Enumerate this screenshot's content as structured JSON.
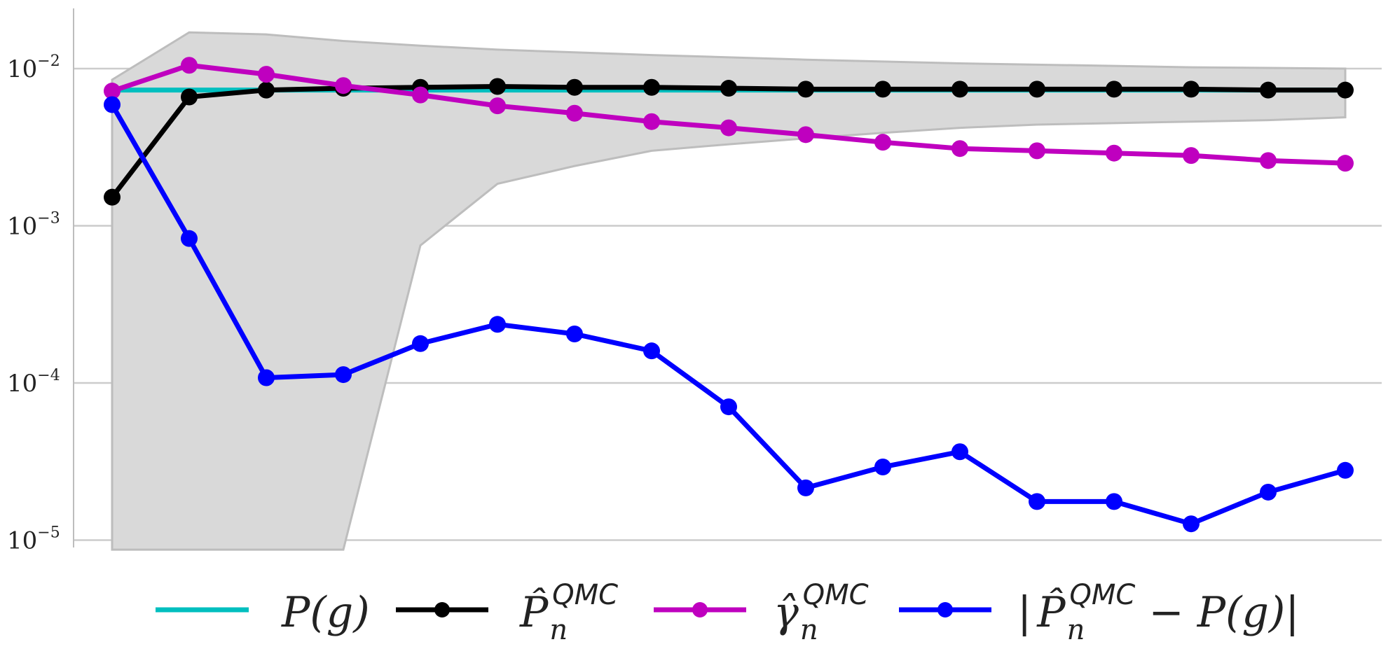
{
  "chart_data": {
    "type": "line",
    "title": "",
    "xlabel": "",
    "ylabel": "",
    "yscale": "log",
    "ylim": [
      8.5e-06,
      0.025
    ],
    "x": [
      1,
      2,
      3,
      4,
      5,
      6,
      7,
      8,
      9,
      10,
      11,
      12,
      13,
      14,
      15,
      16,
      17
    ],
    "y_ticks": [
      {
        "value": 0.01,
        "base": "10",
        "exp": "−2"
      },
      {
        "value": 0.001,
        "base": "10",
        "exp": "−3"
      },
      {
        "value": 0.0001,
        "base": "10",
        "exp": "−4"
      },
      {
        "value": 1e-05,
        "base": "10",
        "exp": "−5"
      }
    ],
    "grid": {
      "horizontal": true,
      "vertical": false
    },
    "legend_position": "bottom",
    "band": {
      "upper": [
        0.0085,
        0.017,
        0.0165,
        0.015,
        0.014,
        0.0132,
        0.0127,
        0.0122,
        0.0118,
        0.0114,
        0.0111,
        0.0108,
        0.0106,
        0.0104,
        0.0102,
        0.0101,
        0.01
      ],
      "lower": [
        8.7e-06,
        8.7e-06,
        8.7e-06,
        8.7e-06,
        0.00075,
        0.00185,
        0.0024,
        0.003,
        0.0033,
        0.0036,
        0.0039,
        0.0042,
        0.0044,
        0.0045,
        0.0046,
        0.0047,
        0.0049
      ],
      "color": "#d9d9d9",
      "edge_color": "#bdbdbd"
    },
    "series": [
      {
        "key": "p_g",
        "color": "#00bfbf",
        "markers": false,
        "values": [
          0.0073,
          0.0073,
          0.0073,
          0.0073,
          0.0073,
          0.0073,
          0.0073,
          0.0073,
          0.0073,
          0.0073,
          0.0073,
          0.0073,
          0.0073,
          0.0073,
          0.0073,
          0.0073,
          0.0073
        ]
      },
      {
        "key": "p_hat",
        "color": "#000000",
        "markers": true,
        "values": [
          0.00152,
          0.0066,
          0.0073,
          0.0075,
          0.0076,
          0.0077,
          0.0076,
          0.0076,
          0.0075,
          0.0074,
          0.0074,
          0.0074,
          0.0074,
          0.0074,
          0.0074,
          0.0073,
          0.0073
        ]
      },
      {
        "key": "gamma_hat",
        "color": "#bf00bf",
        "markers": true,
        "values": [
          0.0072,
          0.0105,
          0.0092,
          0.0078,
          0.0068,
          0.0058,
          0.0052,
          0.0046,
          0.0042,
          0.0038,
          0.0034,
          0.0031,
          0.003,
          0.0029,
          0.0028,
          0.0026,
          0.0025
        ]
      },
      {
        "key": "abs_err",
        "color": "#0000ff",
        "markers": true,
        "values": [
          0.0059,
          0.00083,
          0.000108,
          0.000113,
          0.000178,
          0.000236,
          0.000205,
          0.00016,
          7.05e-05,
          2.15e-05,
          2.92e-05,
          3.65e-05,
          1.76e-05,
          1.76e-05,
          1.27e-05,
          2.02e-05,
          2.78e-05
        ]
      }
    ],
    "legend": [
      {
        "series": "p_g",
        "parts": {
          "main": "P(g)"
        }
      },
      {
        "series": "p_hat",
        "parts": {
          "main": "P̂",
          "sub": "n",
          "sup": "QMC"
        }
      },
      {
        "series": "gamma_hat",
        "parts": {
          "main": "γ̂",
          "sub": "n",
          "sup": "QMC"
        }
      },
      {
        "series": "abs_err",
        "parts": {
          "open": "|",
          "main": "P̂",
          "sub": "n",
          "sup": "QMC",
          "rest": " − P(g)|"
        }
      }
    ]
  }
}
